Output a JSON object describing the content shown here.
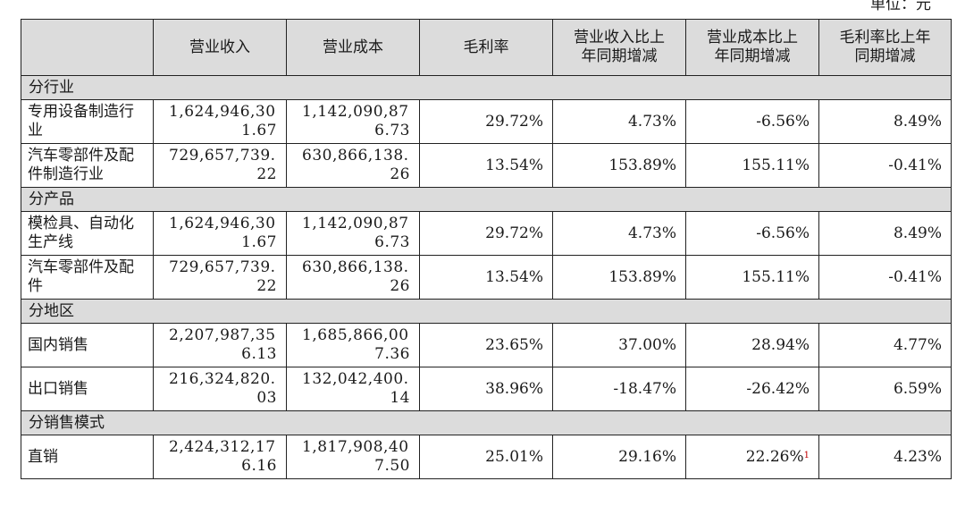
{
  "unit_label": "单位：元",
  "headers": [
    "",
    "营业收入",
    "营业成本",
    "毛利率",
    "营业收入比上年同期增减",
    "营业成本比上年同期增减",
    "毛利率比上年同期增减"
  ],
  "headers_lines": [
    [
      ""
    ],
    [
      "营业收入"
    ],
    [
      "营业成本"
    ],
    [
      "毛利率"
    ],
    [
      "营业收入比上",
      "年同期增减"
    ],
    [
      "营业成本比上",
      "年同期增减"
    ],
    [
      "毛利率比上年",
      "同期增减"
    ]
  ],
  "sections": [
    {
      "title": "分行业",
      "rows": [
        {
          "name": "专用设备制造行业",
          "revenue": [
            "1,624,946,30",
            "1.67"
          ],
          "cost": [
            "1,142,090,87",
            "6.73"
          ],
          "margin": "29.72%",
          "rev_change": "4.73%",
          "cost_change": "-6.56%",
          "margin_change": "8.49%"
        },
        {
          "name": "汽车零部件及配件制造行业",
          "revenue": [
            "729,657,739.",
            "22"
          ],
          "cost": [
            "630,866,138.",
            "26"
          ],
          "margin": "13.54%",
          "rev_change": "153.89%",
          "cost_change": "155.11%",
          "margin_change": "-0.41%"
        }
      ]
    },
    {
      "title": "分产品",
      "rows": [
        {
          "name": "模检具、自动化生产线",
          "revenue": [
            "1,624,946,30",
            "1.67"
          ],
          "cost": [
            "1,142,090,87",
            "6.73"
          ],
          "margin": "29.72%",
          "rev_change": "4.73%",
          "cost_change": "-6.56%",
          "margin_change": "8.49%"
        },
        {
          "name": "汽车零部件及配件",
          "revenue": [
            "729,657,739.",
            "22"
          ],
          "cost": [
            "630,866,138.",
            "26"
          ],
          "margin": "13.54%",
          "rev_change": "153.89%",
          "cost_change": "155.11%",
          "margin_change": "-0.41%"
        }
      ]
    },
    {
      "title": "分地区",
      "rows": [
        {
          "name": "国内销售",
          "revenue": [
            "2,207,987,35",
            "6.13"
          ],
          "cost": [
            "1,685,866,00",
            "7.36"
          ],
          "margin": "23.65%",
          "rev_change": "37.00%",
          "cost_change": "28.94%",
          "margin_change": "4.77%"
        },
        {
          "name": "出口销售",
          "revenue": [
            "216,324,820.",
            "03"
          ],
          "cost": [
            "132,042,400.",
            "14"
          ],
          "margin": "38.96%",
          "rev_change": "-18.47%",
          "cost_change": "-26.42%",
          "margin_change": "6.59%"
        }
      ]
    },
    {
      "title": "分销售模式",
      "rows": [
        {
          "name": "直销",
          "revenue": [
            "2,424,312,17",
            "6.16"
          ],
          "cost": [
            "1,817,908,40",
            "7.50"
          ],
          "margin": "25.01%",
          "rev_change": "29.16%",
          "cost_change": "22.26%",
          "cost_change_footnote": "1",
          "margin_change": "4.23%"
        }
      ]
    }
  ]
}
